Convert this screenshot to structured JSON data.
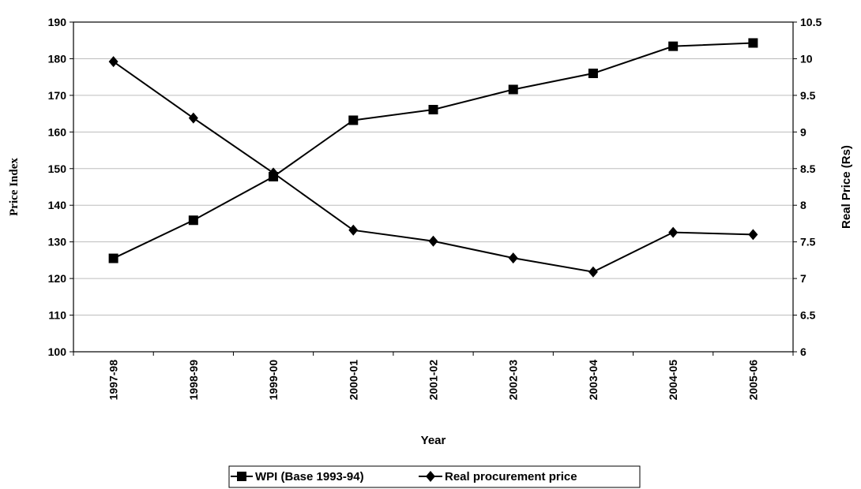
{
  "chart_data": {
    "type": "line",
    "xlabel": "Year",
    "ylabel_left": "Price Index",
    "ylabel_right": "Real Price (Rs)",
    "categories": [
      "1997-98",
      "1998-99",
      "1999-00",
      "2000-01",
      "2001-02",
      "2002-03",
      "2003-04",
      "2004-05",
      "2005-06"
    ],
    "y_left": {
      "min": 100,
      "max": 190,
      "step": 10,
      "ticks": [
        "100",
        "110",
        "120",
        "130",
        "140",
        "150",
        "160",
        "170",
        "180",
        "190"
      ]
    },
    "y_right": {
      "min": 6,
      "max": 10.5,
      "step": 0.5,
      "ticks": [
        "6",
        "6.5",
        "7",
        "7.5",
        "8",
        "8.5",
        "9",
        "9.5",
        "10",
        "10.5"
      ]
    },
    "grid": true,
    "legend_position": "bottom",
    "series": [
      {
        "name": "WPI (Base 1993-94)",
        "axis": "left",
        "marker": "square",
        "color": "#000000",
        "values": [
          125.5,
          135.9,
          147.8,
          163.2,
          166.1,
          171.6,
          176.0,
          183.4,
          184.3
        ]
      },
      {
        "name": "Real procurement price",
        "axis": "right",
        "marker": "diamond",
        "color": "#000000",
        "values": [
          9.96,
          9.19,
          8.44,
          7.66,
          7.51,
          7.28,
          7.09,
          7.63,
          7.6
        ]
      }
    ]
  }
}
